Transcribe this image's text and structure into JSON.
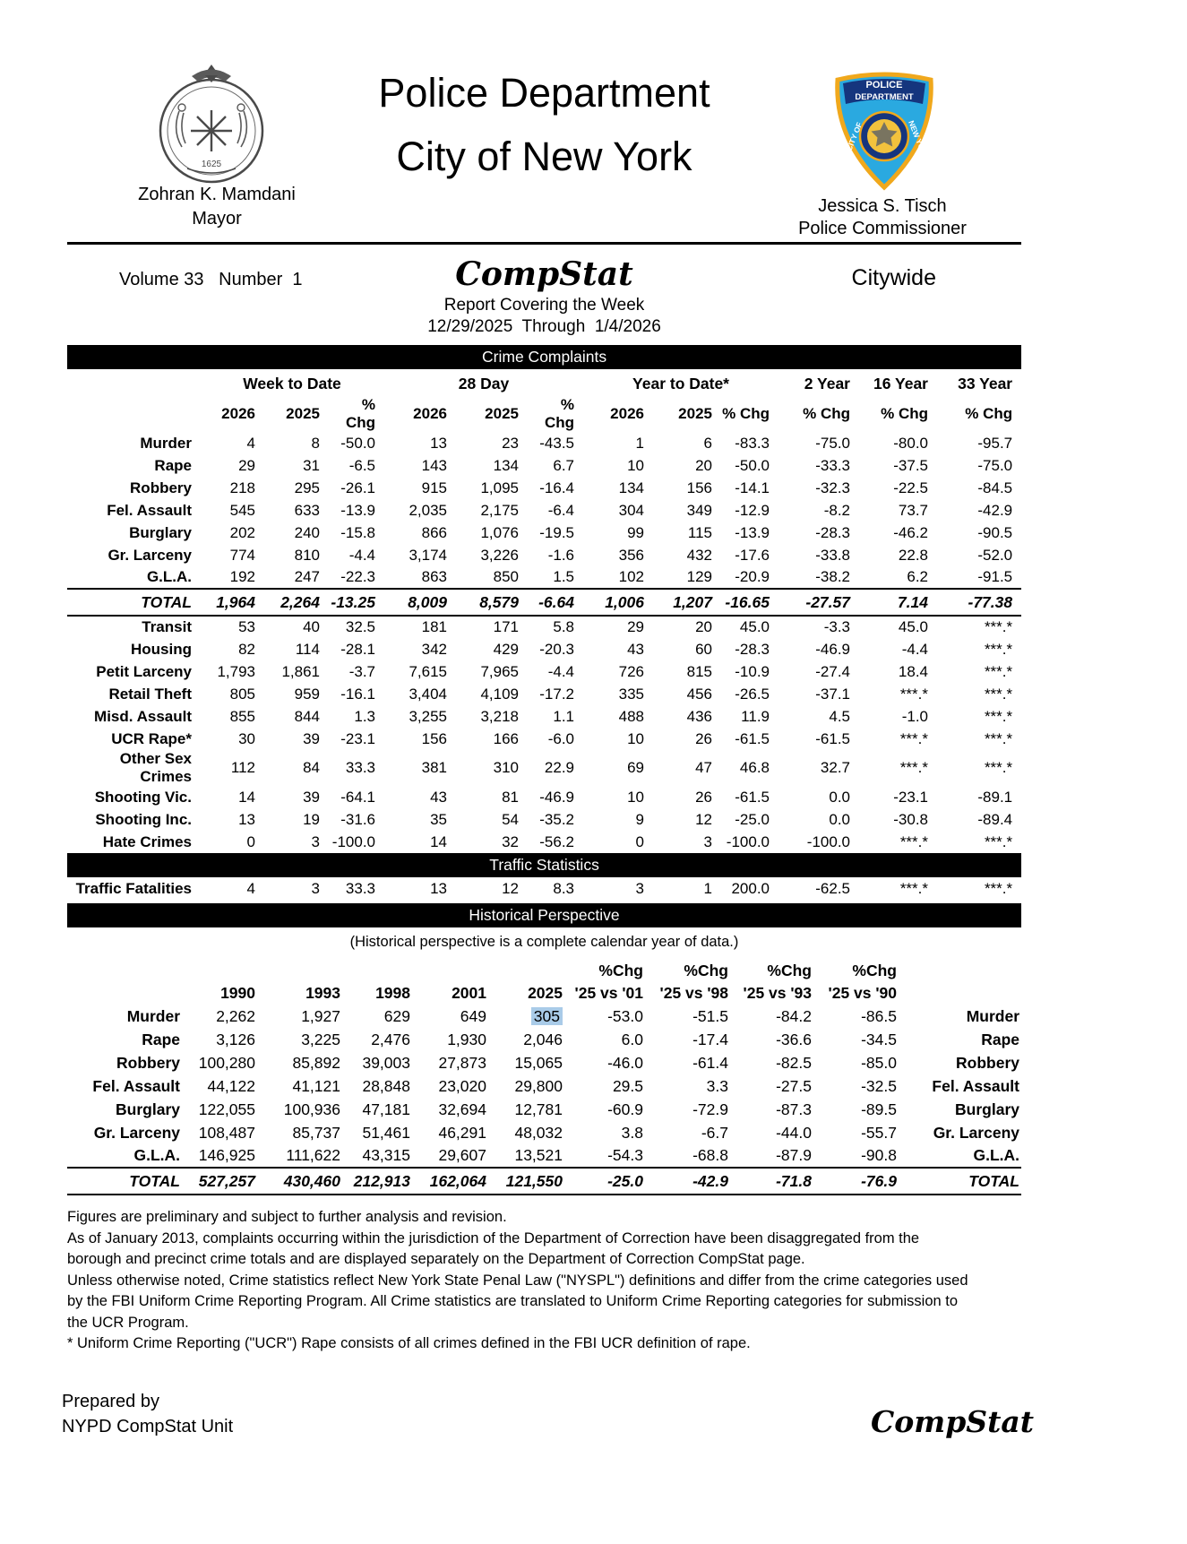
{
  "colors": {
    "bar_bg": "#000000",
    "bar_text": "#ffffff",
    "highlight": "#a9cbe8",
    "badge_blue": "#2aa9e0",
    "badge_gold": "#f0a81c",
    "badge_navy": "#15357e",
    "badge_center_gold": "#f2c23d"
  },
  "header": {
    "title_line1": "Police Department",
    "title_line2": "City of New York",
    "mayor_name": "Zohran K. Mamdani",
    "mayor_title": "Mayor",
    "commissioner_name": "Jessica S. Tisch",
    "commissioner_title": "Police Commissioner",
    "seal_icon": "city-of-new-york-seal",
    "seal_year": "1625",
    "badge_icon": "nypd-badge",
    "badge_text_top1": "POLICE",
    "badge_text_top2": "DEPARTMENT",
    "badge_text_left": "CITY OF",
    "badge_text_right": "NEW YORK"
  },
  "masthead": {
    "volume_label": "Volume 33   Number  1",
    "brand": "CompStat",
    "scope": "Citywide",
    "covering_line": "Report Covering the Week",
    "date_range": "12/29/2025  Through  1/4/2026"
  },
  "crime_complaints": {
    "section_title": "Crime Complaints",
    "col_groups": [
      "Week to Date",
      "28 Day",
      "Year to Date*",
      "2 Year",
      "16 Year",
      "33 Year"
    ],
    "sub_headers": [
      "2026",
      "2025",
      "% Chg",
      "2026",
      "2025",
      "% Chg",
      "2026",
      "2025",
      "% Chg",
      "% Chg",
      "% Chg",
      "% Chg"
    ],
    "rows": [
      {
        "label": "Murder",
        "values": [
          "4",
          "8",
          "-50.0",
          "13",
          "23",
          "-43.5",
          "1",
          "6",
          "-83.3",
          "-75.0",
          "-80.0",
          "-95.7"
        ]
      },
      {
        "label": "Rape",
        "values": [
          "29",
          "31",
          "-6.5",
          "143",
          "134",
          "6.7",
          "10",
          "20",
          "-50.0",
          "-33.3",
          "-37.5",
          "-75.0"
        ]
      },
      {
        "label": "Robbery",
        "values": [
          "218",
          "295",
          "-26.1",
          "915",
          "1,095",
          "-16.4",
          "134",
          "156",
          "-14.1",
          "-32.3",
          "-22.5",
          "-84.5"
        ]
      },
      {
        "label": "Fel. Assault",
        "values": [
          "545",
          "633",
          "-13.9",
          "2,035",
          "2,175",
          "-6.4",
          "304",
          "349",
          "-12.9",
          "-8.2",
          "73.7",
          "-42.9"
        ]
      },
      {
        "label": "Burglary",
        "values": [
          "202",
          "240",
          "-15.8",
          "866",
          "1,076",
          "-19.5",
          "99",
          "115",
          "-13.9",
          "-28.3",
          "-46.2",
          "-90.5"
        ]
      },
      {
        "label": "Gr. Larceny",
        "values": [
          "774",
          "810",
          "-4.4",
          "3,174",
          "3,226",
          "-1.6",
          "356",
          "432",
          "-17.6",
          "-33.8",
          "22.8",
          "-52.0"
        ]
      },
      {
        "label": "G.L.A.",
        "values": [
          "192",
          "247",
          "-22.3",
          "863",
          "850",
          "1.5",
          "102",
          "129",
          "-20.9",
          "-38.2",
          "6.2",
          "-91.5"
        ]
      }
    ],
    "total_rows": [
      {
        "label": "TOTAL",
        "total": true,
        "values": [
          "1,964",
          "2,264",
          "-13.25",
          "8,009",
          "8,579",
          "-6.64",
          "1,006",
          "1,207",
          "-16.65",
          "-27.57",
          "7.14",
          "-77.38"
        ]
      }
    ],
    "extra_rows": [
      {
        "label": "Transit",
        "values": [
          "53",
          "40",
          "32.5",
          "181",
          "171",
          "5.8",
          "29",
          "20",
          "45.0",
          "-3.3",
          "45.0",
          "***.*"
        ]
      },
      {
        "label": "Housing",
        "values": [
          "82",
          "114",
          "-28.1",
          "342",
          "429",
          "-20.3",
          "43",
          "60",
          "-28.3",
          "-46.9",
          "-4.4",
          "***.*"
        ]
      },
      {
        "label": "Petit Larceny",
        "values": [
          "1,793",
          "1,861",
          "-3.7",
          "7,615",
          "7,965",
          "-4.4",
          "726",
          "815",
          "-10.9",
          "-27.4",
          "18.4",
          "***.*"
        ]
      },
      {
        "label": "Retail Theft",
        "values": [
          "805",
          "959",
          "-16.1",
          "3,404",
          "4,109",
          "-17.2",
          "335",
          "456",
          "-26.5",
          "-37.1",
          "***.*",
          "***.*"
        ]
      },
      {
        "label": "Misd. Assault",
        "values": [
          "855",
          "844",
          "1.3",
          "3,255",
          "3,218",
          "1.1",
          "488",
          "436",
          "11.9",
          "4.5",
          "-1.0",
          "***.*"
        ]
      },
      {
        "label": "UCR Rape*",
        "values": [
          "30",
          "39",
          "-23.1",
          "156",
          "166",
          "-6.0",
          "10",
          "26",
          "-61.5",
          "-61.5",
          "***.*",
          "***.*"
        ]
      },
      {
        "label": "Other Sex Crimes",
        "values": [
          "112",
          "84",
          "33.3",
          "381",
          "310",
          "22.9",
          "69",
          "47",
          "46.8",
          "32.7",
          "***.*",
          "***.*"
        ]
      },
      {
        "label": "Shooting Vic.",
        "values": [
          "14",
          "39",
          "-64.1",
          "43",
          "81",
          "-46.9",
          "10",
          "26",
          "-61.5",
          "0.0",
          "-23.1",
          "-89.1"
        ]
      },
      {
        "label": "Shooting Inc.",
        "values": [
          "13",
          "19",
          "-31.6",
          "35",
          "54",
          "-35.2",
          "9",
          "12",
          "-25.0",
          "0.0",
          "-30.8",
          "-89.4"
        ]
      },
      {
        "label": "Hate Crimes",
        "values": [
          "0",
          "3",
          "-100.0",
          "14",
          "32",
          "-56.2",
          "0",
          "3",
          "-100.0",
          "-100.0",
          "***.*",
          "***.*"
        ]
      }
    ]
  },
  "traffic": {
    "section_title": "Traffic Statistics",
    "rows": [
      {
        "label": "Traffic Fatalities",
        "values": [
          "4",
          "3",
          "33.3",
          "13",
          "12",
          "8.3",
          "3",
          "1",
          "200.0",
          "-62.5",
          "***.*",
          "***.*"
        ]
      }
    ]
  },
  "historical": {
    "section_title": "Historical Perspective",
    "note": "(Historical perspective is a complete calendar year of data.)",
    "chg_label": "%Chg",
    "year_headers": [
      "1990",
      "1993",
      "1998",
      "2001",
      "2025"
    ],
    "vs_headers": [
      "'25 vs '01",
      "'25 vs '98",
      "'25 vs '93",
      "'25 vs '90"
    ],
    "highlight": {
      "row": 0,
      "col": 4
    },
    "rows": [
      {
        "label": "Murder",
        "values": [
          "2,262",
          "1,927",
          "629",
          "649",
          "305",
          "-53.0",
          "-51.5",
          "-84.2",
          "-86.5"
        ]
      },
      {
        "label": "Rape",
        "values": [
          "3,126",
          "3,225",
          "2,476",
          "1,930",
          "2,046",
          "6.0",
          "-17.4",
          "-36.6",
          "-34.5"
        ]
      },
      {
        "label": "Robbery",
        "values": [
          "100,280",
          "85,892",
          "39,003",
          "27,873",
          "15,065",
          "-46.0",
          "-61.4",
          "-82.5",
          "-85.0"
        ]
      },
      {
        "label": "Fel. Assault",
        "values": [
          "44,122",
          "41,121",
          "28,848",
          "23,020",
          "29,800",
          "29.5",
          "3.3",
          "-27.5",
          "-32.5"
        ]
      },
      {
        "label": "Burglary",
        "values": [
          "122,055",
          "100,936",
          "47,181",
          "32,694",
          "12,781",
          "-60.9",
          "-72.9",
          "-87.3",
          "-89.5"
        ]
      },
      {
        "label": "Gr. Larceny",
        "values": [
          "108,487",
          "85,737",
          "51,461",
          "46,291",
          "48,032",
          "3.8",
          "-6.7",
          "-44.0",
          "-55.7"
        ]
      },
      {
        "label": "G.L.A.",
        "values": [
          "146,925",
          "111,622",
          "43,315",
          "29,607",
          "13,521",
          "-54.3",
          "-68.8",
          "-87.9",
          "-90.8"
        ]
      }
    ],
    "total_rows": [
      {
        "label": "TOTAL",
        "total": true,
        "values": [
          "527,257",
          "430,460",
          "212,913",
          "162,064",
          "121,550",
          "-25.0",
          "-42.9",
          "-71.8",
          "-76.9"
        ]
      }
    ]
  },
  "footnotes": [
    "Figures are preliminary and subject to further analysis and revision.",
    "As of January 2013, complaints occurring within the jurisdiction of the Department of Correction have been disaggregated from the borough and precinct crime totals and are displayed separately on the Department of Correction CompStat page.",
    "Unless otherwise noted, Crime statistics reflect New York State Penal Law (\"NYSPL\") definitions and differ from the crime categories used by the FBI Uniform Crime Reporting Program. All Crime statistics are translated to Uniform Crime Reporting categories for submission to the UCR Program.",
    "* Uniform Crime Reporting (\"UCR\") Rape consists of all crimes defined in the FBI UCR definition of rape."
  ],
  "footer": {
    "prepared_line1": "Prepared by",
    "prepared_line2": "NYPD CompStat Unit",
    "brand": "CompStat"
  }
}
